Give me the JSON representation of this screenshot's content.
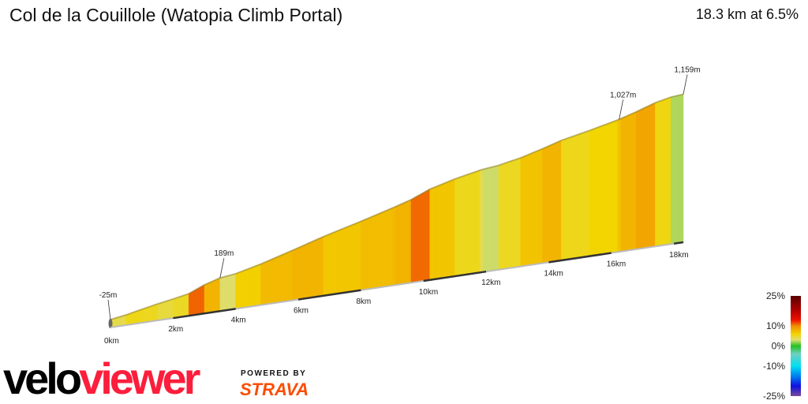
{
  "header": {
    "title": "Col de la Couillole (Watopia Climb Portal)",
    "summary": "18.3 km at 6.5%"
  },
  "branding": {
    "velo": "velo",
    "viewer": "viewer",
    "powered_by": "POWERED BY",
    "strava": "STRAVA"
  },
  "chart_data": {
    "type": "area",
    "title": "Col de la Couillole (Watopia Climb Portal)",
    "x_unit": "km",
    "y_unit": "m",
    "xlim": [
      0,
      18.3
    ],
    "x_ticks": [
      "0km",
      "2km",
      "4km",
      "6km",
      "8km",
      "10km",
      "12km",
      "14km",
      "16km",
      "18km"
    ],
    "profile": [
      {
        "km": 0,
        "elev": -25
      },
      {
        "km": 0.5,
        "elev": -5
      },
      {
        "km": 1.0,
        "elev": 22
      },
      {
        "km": 1.5,
        "elev": 48
      },
      {
        "km": 2.0,
        "elev": 70
      },
      {
        "km": 2.5,
        "elev": 95
      },
      {
        "km": 3.0,
        "elev": 150
      },
      {
        "km": 3.5,
        "elev": 189
      },
      {
        "km": 4.0,
        "elev": 205
      },
      {
        "km": 4.8,
        "elev": 255
      },
      {
        "km": 5.8,
        "elev": 330
      },
      {
        "km": 6.8,
        "elev": 408
      },
      {
        "km": 8.0,
        "elev": 490
      },
      {
        "km": 9.07,
        "elev": 568
      },
      {
        "km": 9.6,
        "elev": 610
      },
      {
        "km": 10.2,
        "elev": 675
      },
      {
        "km": 11.0,
        "elev": 730
      },
      {
        "km": 11.85,
        "elev": 775
      },
      {
        "km": 12.4,
        "elev": 790
      },
      {
        "km": 13.1,
        "elev": 826
      },
      {
        "km": 13.8,
        "elev": 875
      },
      {
        "km": 14.4,
        "elev": 922
      },
      {
        "km": 15.3,
        "elev": 970
      },
      {
        "km": 16.25,
        "elev": 1027
      },
      {
        "km": 16.8,
        "elev": 1070
      },
      {
        "km": 17.4,
        "elev": 1122
      },
      {
        "km": 17.9,
        "elev": 1150
      },
      {
        "km": 18.3,
        "elev": 1159
      }
    ],
    "annotations": [
      {
        "km": 0,
        "label": "-25m"
      },
      {
        "km": 3.5,
        "label": "189m"
      },
      {
        "km": 16.25,
        "label": "1,027m"
      },
      {
        "km": 18.3,
        "label": "1,159m"
      }
    ],
    "legend": {
      "title": "",
      "ticks": [
        "25%",
        "10%",
        "0%",
        "-10%",
        "-25%"
      ],
      "scale": [
        {
          "grade": 25,
          "color": "#5a0000"
        },
        {
          "grade": 18,
          "color": "#b00000"
        },
        {
          "grade": 13,
          "color": "#ee1100"
        },
        {
          "grade": 10,
          "color": "#f28c00"
        },
        {
          "grade": 6,
          "color": "#f2d500"
        },
        {
          "grade": 3,
          "color": "#dede70"
        },
        {
          "grade": 0,
          "color": "#22c022"
        },
        {
          "grade": -4,
          "color": "#70d0c0"
        },
        {
          "grade": -10,
          "color": "#00e0f0"
        },
        {
          "grade": -15,
          "color": "#0080f0"
        },
        {
          "grade": -20,
          "color": "#1010e0"
        },
        {
          "grade": -25,
          "color": "#7a4a9a"
        }
      ]
    }
  }
}
